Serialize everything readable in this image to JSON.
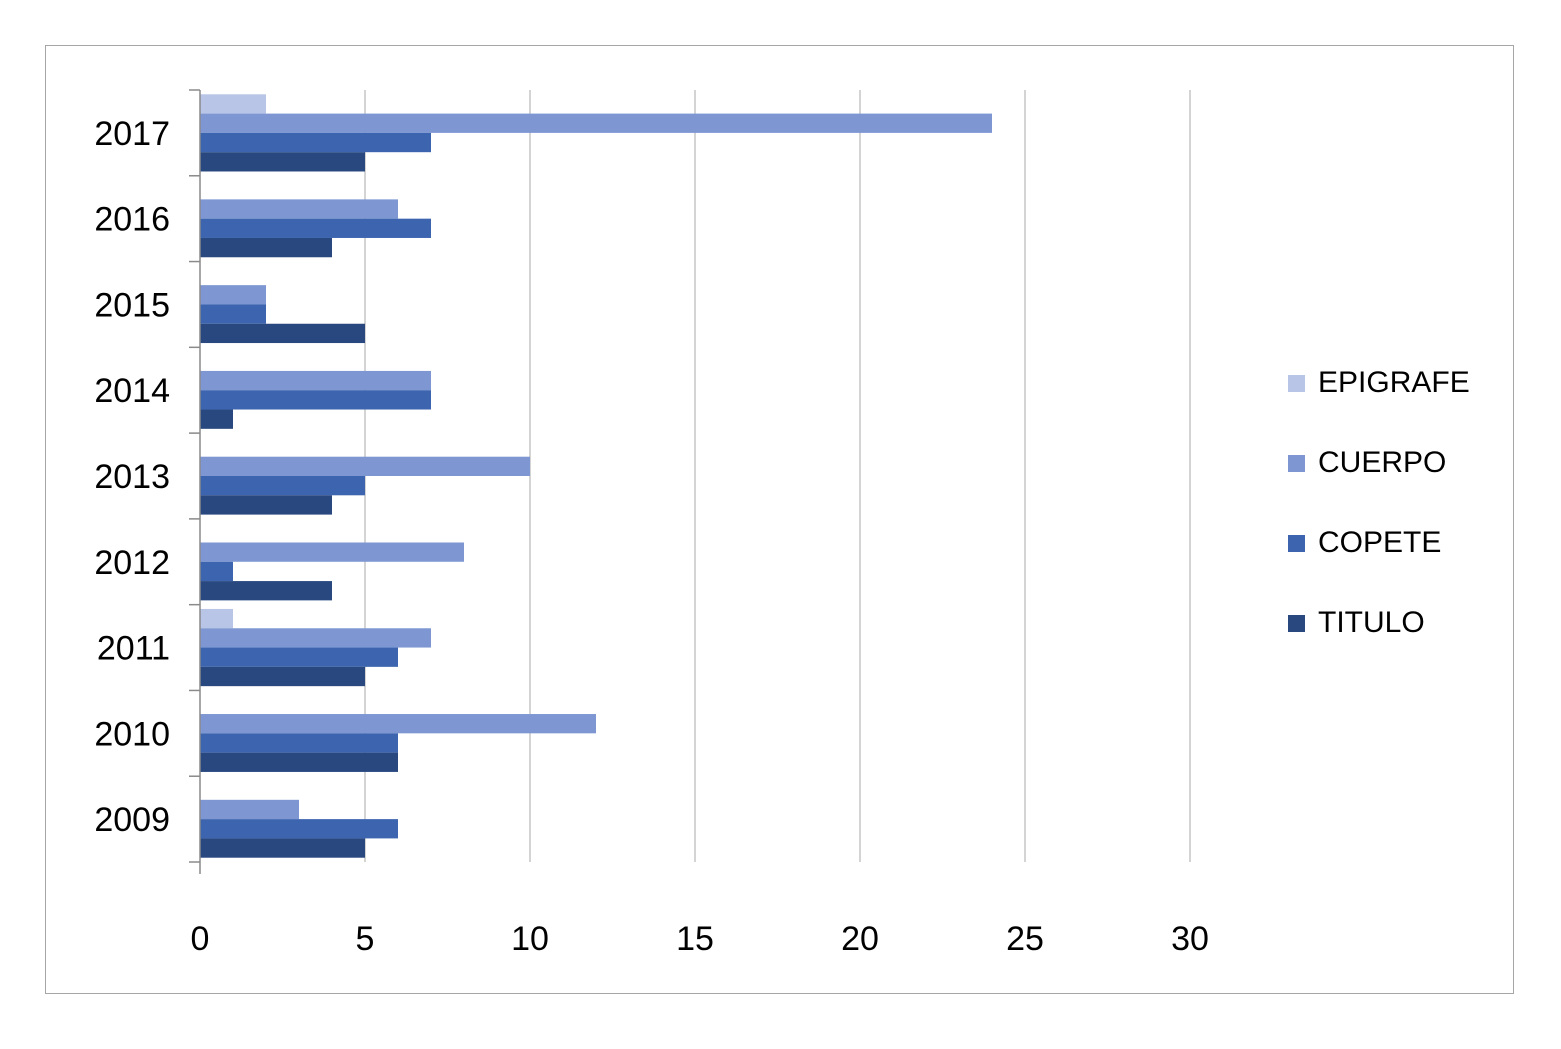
{
  "chart_data": {
    "type": "bar",
    "orientation": "horizontal",
    "title": "",
    "xlabel": "",
    "ylabel": "",
    "categories": [
      "2017",
      "2016",
      "2015",
      "2014",
      "2013",
      "2012",
      "2011",
      "2010",
      "2009"
    ],
    "series": [
      {
        "name": "EPIGRAFE",
        "color": "#b9c5e6",
        "values": [
          2,
          0,
          0,
          0,
          0,
          0,
          1,
          0,
          0
        ]
      },
      {
        "name": "CUERPO",
        "color": "#7e97d3",
        "values": [
          24,
          6,
          2,
          7,
          10,
          8,
          7,
          12,
          3
        ]
      },
      {
        "name": "COPETE",
        "color": "#3d65af",
        "values": [
          7,
          7,
          2,
          7,
          5,
          1,
          6,
          6,
          6
        ]
      },
      {
        "name": "TITULO",
        "color": "#294880",
        "values": [
          5,
          4,
          5,
          1,
          4,
          4,
          5,
          6,
          5
        ]
      }
    ],
    "x_ticks": [
      0,
      5,
      10,
      15,
      20,
      25,
      30
    ],
    "xlim": [
      0,
      30
    ],
    "grid": true,
    "legend_position": "right",
    "colors": {
      "gridline": "#c6c6c6",
      "axis": "#8a8a8a",
      "border": "#a6a6a6",
      "text": "#000000",
      "background": "#ffffff"
    }
  }
}
